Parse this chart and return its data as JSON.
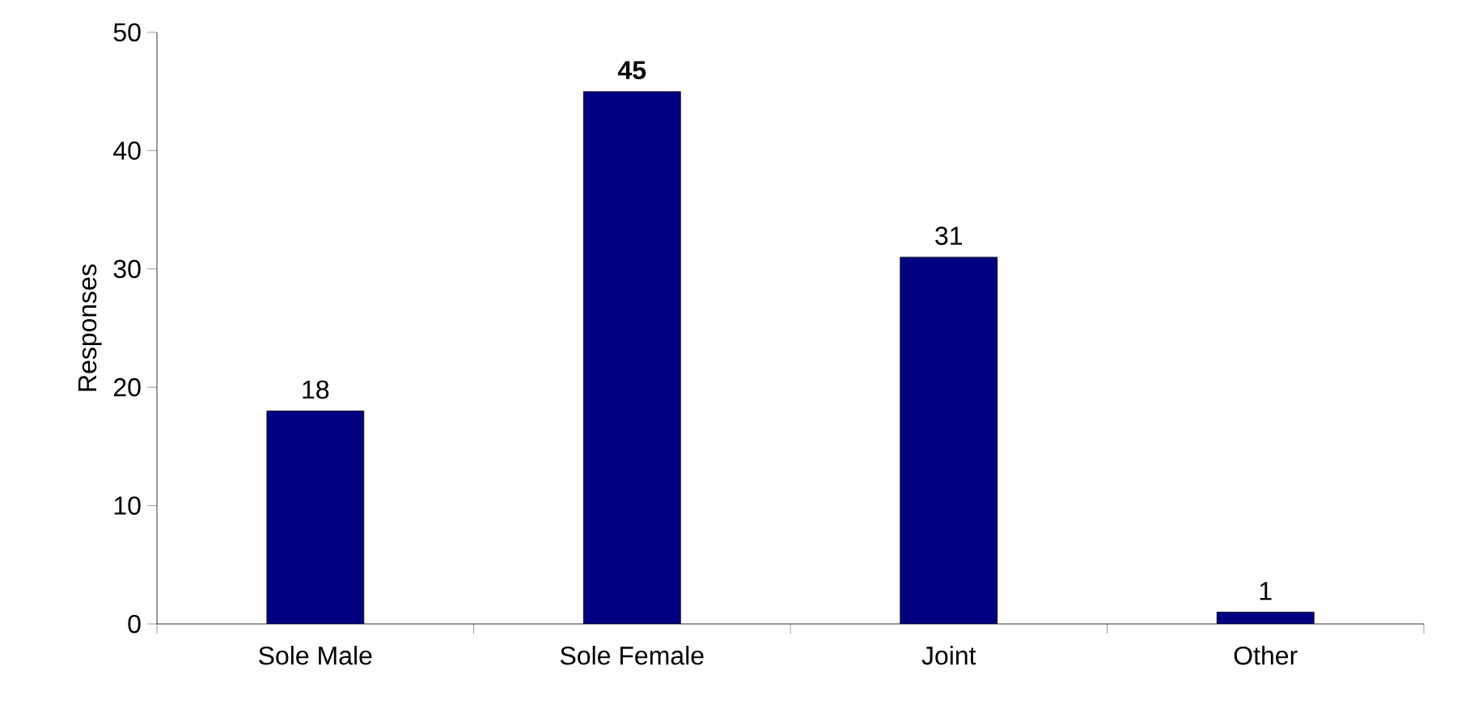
{
  "chart_data": {
    "type": "bar",
    "ylabel": "Responses",
    "categories": [
      "Sole Male",
      "Sole Female",
      "Joint",
      "Other"
    ],
    "values": [
      18,
      45,
      31,
      1
    ],
    "value_labels": [
      "18",
      "**45**",
      "31",
      "1"
    ],
    "color": "#000080",
    "ylim": [
      0,
      50
    ],
    "yticks": [
      0,
      10,
      20,
      30,
      40,
      50
    ],
    "grid": false
  }
}
